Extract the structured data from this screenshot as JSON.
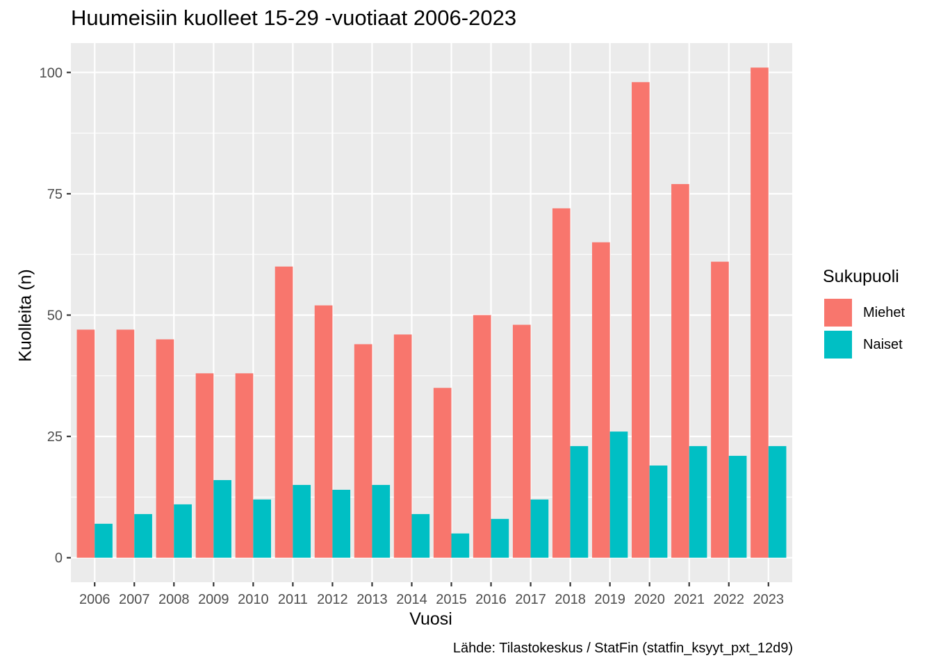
{
  "chart_data": {
    "type": "bar",
    "title": "Huumeisiin kuolleet 15-29 -vuotiaat 2006-2023",
    "xlabel": "Vuosi",
    "ylabel": "Kuolleita (n)",
    "caption": "Lähde: Tilastokeskus / StatFin (statfin_ksyyt_pxt_12d9)",
    "categories": [
      "2006",
      "2007",
      "2008",
      "2009",
      "2010",
      "2011",
      "2012",
      "2013",
      "2014",
      "2015",
      "2016",
      "2017",
      "2018",
      "2019",
      "2020",
      "2021",
      "2022",
      "2023"
    ],
    "series": [
      {
        "name": "Miehet",
        "color": "#F8766D",
        "values": [
          47,
          47,
          45,
          38,
          38,
          60,
          52,
          44,
          46,
          35,
          50,
          48,
          72,
          65,
          98,
          77,
          61,
          101
        ]
      },
      {
        "name": "Naiset",
        "color": "#00BFC4",
        "values": [
          7,
          9,
          11,
          16,
          12,
          15,
          14,
          15,
          9,
          5,
          8,
          12,
          23,
          26,
          19,
          23,
          21,
          23
        ]
      }
    ],
    "ylim": [
      -5.05,
      106.05
    ],
    "yticks": [
      0,
      25,
      50,
      75,
      100
    ],
    "grid": true,
    "panel_background": "#EBEBEB",
    "legend": {
      "title": "Sukupuoli",
      "position": "right"
    }
  }
}
